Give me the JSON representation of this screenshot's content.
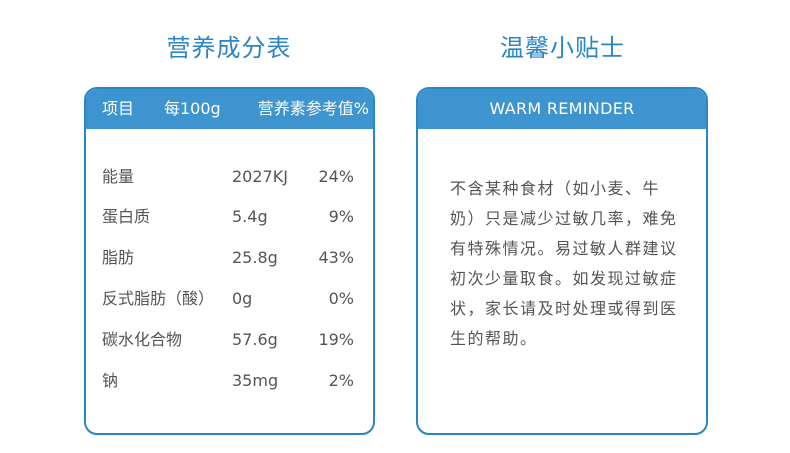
{
  "nutrition": {
    "title": "营养成分表",
    "header": {
      "item": "项目",
      "per": "每100g",
      "nrv": "营养素参考值%"
    },
    "rows": [
      {
        "name": "能量",
        "amount": "2027KJ",
        "nrv": "24%"
      },
      {
        "name": "蛋白质",
        "amount": "5.4g",
        "nrv": "9%"
      },
      {
        "name": "脂肪",
        "amount": "25.8g",
        "nrv": "43%"
      },
      {
        "name": "反式脂肪（酸）",
        "amount": "0g",
        "nrv": "0%"
      },
      {
        "name": "碳水化合物",
        "amount": "57.6g",
        "nrv": "19%"
      },
      {
        "name": "钠",
        "amount": "35mg",
        "nrv": "2%"
      }
    ]
  },
  "reminder": {
    "title": "温馨小贴士",
    "header": "WARM REMINDER",
    "text": "不含某种食材（如小麦、牛奶）只是减少过敏几率，难免有特殊情况。易过敏人群建议初次少量取食。如发现过敏症状，家长请及时处理或得到医生的帮助。"
  }
}
